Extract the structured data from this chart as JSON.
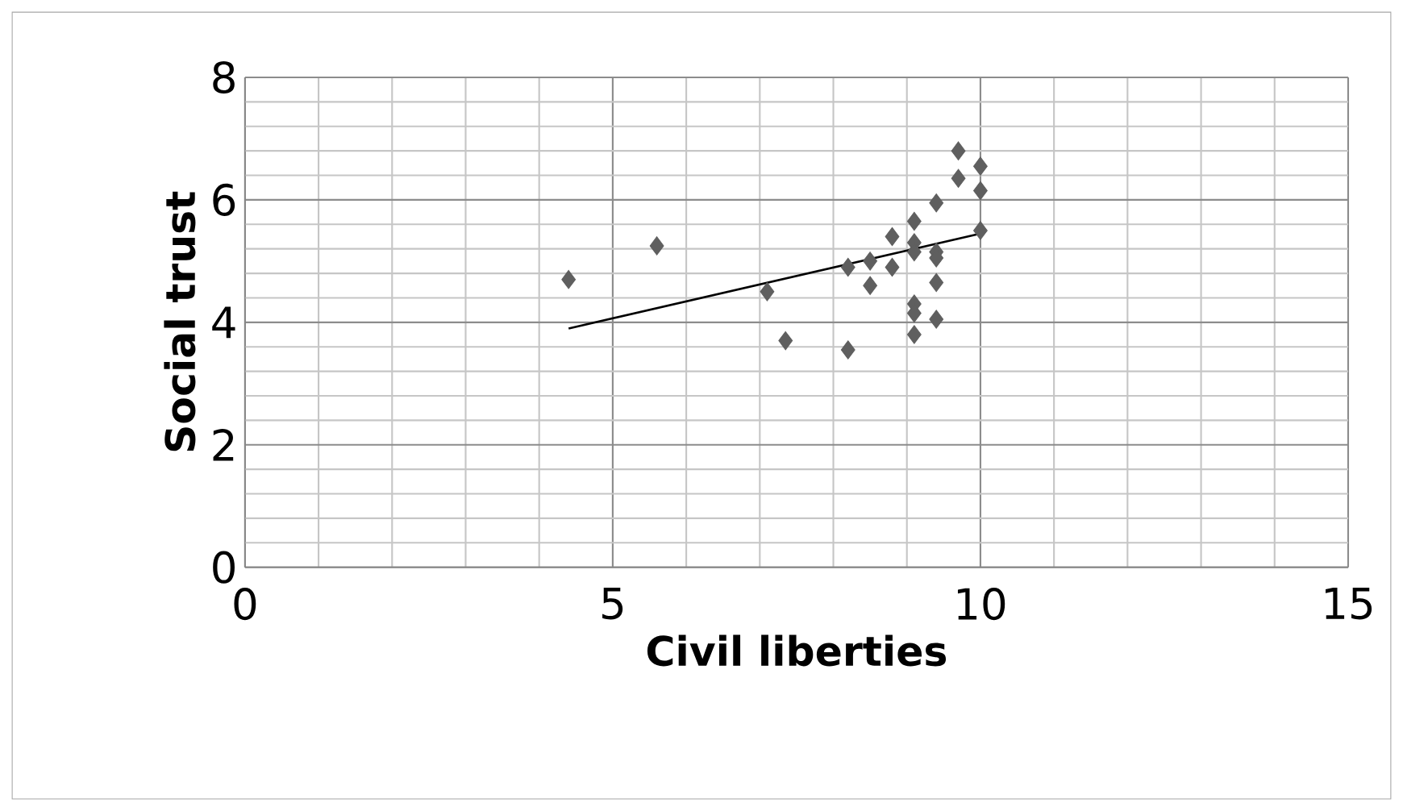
{
  "chart_data": {
    "type": "scatter",
    "xlabel": "Civil liberties",
    "ylabel": "Social trust",
    "xlim": [
      0,
      15
    ],
    "ylim": [
      0,
      8
    ],
    "xticks": [
      0,
      5,
      10,
      15
    ],
    "yticks": [
      0,
      2,
      4,
      6,
      8
    ],
    "grid": true,
    "series": [
      {
        "color": "#5f5f5f",
        "marker": "diamond",
        "x": [
          4.4,
          5.6,
          7.1,
          7.35,
          8.2,
          8.2,
          8.5,
          8.5,
          8.8,
          8.8,
          9.1,
          9.1,
          9.1,
          9.1,
          9.1,
          9.1,
          9.4,
          9.4,
          9.4,
          9.4,
          9.4,
          9.7,
          9.7,
          10,
          10,
          10
        ],
        "values": [
          4.7,
          5.25,
          4.5,
          3.7,
          3.55,
          4.9,
          4.6,
          5.0,
          4.9,
          5.4,
          5.65,
          5.3,
          5.15,
          4.3,
          4.15,
          3.8,
          5.15,
          5.05,
          4.65,
          4.05,
          5.95,
          6.8,
          6.35,
          6.55,
          6.15,
          5.5
        ]
      },
      {
        "type": "line",
        "color": "#000000",
        "x": [
          4.4,
          10
        ],
        "values": [
          3.9,
          5.45
        ]
      }
    ]
  }
}
